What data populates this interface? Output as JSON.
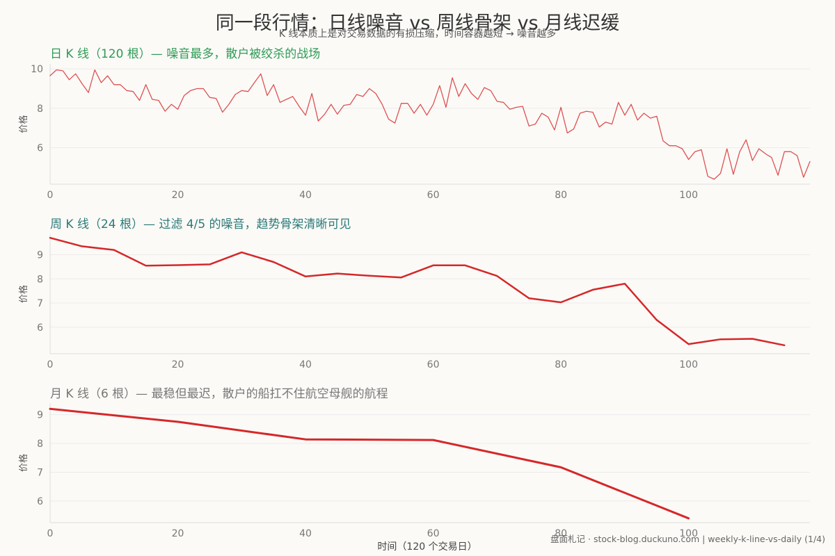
{
  "title": "同一段行情：日线噪音 vs 周线骨架 vs 月线迟缓",
  "subtitle": "K 线本质上是对交易数据的有损压缩，时间容器越短 → 噪音越多",
  "xlabel": "时间（120 个交易日）",
  "footer": "盘面札记 · stock-blog.duckuno.com | weekly-k-line-vs-daily (1/4)",
  "colors": {
    "line": "#d62728",
    "daily_title": "#2e9b55",
    "weekly_title": "#2b7a78",
    "monthly_title": "#777777"
  },
  "chart_data": [
    {
      "type": "line",
      "title": "日 K 线（120 根）— 噪音最多，散户被绞杀的战场",
      "ylabel": "价格",
      "xlim": [
        0,
        119
      ],
      "ylim": [
        4.15,
        10.25
      ],
      "xticks": [
        0,
        20,
        40,
        60,
        80,
        100
      ],
      "yticks": [
        6,
        8,
        10
      ],
      "grid": true,
      "series": [
        {
          "values": [
            9.65,
            9.95,
            9.9,
            9.45,
            9.75,
            9.25,
            8.8,
            9.95,
            9.3,
            9.65,
            9.2,
            9.2,
            8.9,
            8.85,
            8.4,
            9.2,
            8.45,
            8.4,
            7.85,
            8.2,
            7.95,
            8.65,
            8.9,
            9.0,
            9.0,
            8.55,
            8.5,
            7.8,
            8.2,
            8.7,
            8.9,
            8.85,
            9.3,
            9.75,
            8.65,
            9.2,
            8.3,
            8.45,
            8.6,
            8.1,
            7.65,
            8.75,
            7.35,
            7.7,
            8.2,
            7.7,
            8.15,
            8.2,
            8.7,
            8.6,
            9.0,
            8.75,
            8.2,
            7.45,
            7.25,
            8.25,
            8.25,
            7.75,
            8.2,
            7.65,
            8.2,
            9.15,
            8.05,
            9.55,
            8.6,
            9.25,
            8.75,
            8.45,
            9.05,
            8.9,
            8.35,
            8.3,
            7.95,
            8.05,
            8.1,
            7.1,
            7.2,
            7.75,
            7.55,
            6.9,
            8.05,
            6.75,
            6.95,
            7.75,
            7.85,
            7.8,
            7.05,
            7.3,
            7.2,
            8.3,
            7.65,
            8.2,
            7.4,
            7.75,
            7.5,
            7.6,
            6.35,
            6.1,
            6.1,
            5.95,
            5.4,
            5.8,
            5.9,
            4.55,
            4.4,
            4.7,
            5.95,
            4.65,
            5.8,
            6.4,
            5.35,
            5.95,
            5.7,
            5.5,
            4.6,
            5.8,
            5.8,
            5.6,
            4.5,
            5.3
          ]
        }
      ]
    },
    {
      "type": "line",
      "title": "周 K 线（24 根）— 过滤 4/5 的噪音，趋势骨架清晰可见",
      "ylabel": "价格",
      "xlim": [
        0,
        119
      ],
      "ylim": [
        4.9,
        9.85
      ],
      "xticks": [
        0,
        20,
        40,
        60,
        80,
        100
      ],
      "yticks": [
        6,
        7,
        8,
        9
      ],
      "grid": true,
      "series": [
        {
          "x": [
            0,
            5,
            10,
            15,
            20,
            25,
            30,
            35,
            40,
            45,
            50,
            55,
            60,
            65,
            70,
            75,
            80,
            85,
            90,
            95,
            100,
            105,
            110,
            115
          ],
          "values": [
            9.7,
            9.35,
            9.2,
            8.55,
            8.57,
            8.6,
            9.1,
            8.7,
            8.1,
            8.22,
            8.13,
            8.06,
            8.56,
            8.56,
            8.12,
            7.2,
            7.03,
            7.55,
            7.8,
            6.3,
            5.3,
            5.5,
            5.52,
            5.25
          ]
        }
      ]
    },
    {
      "type": "line",
      "title": "月 K 线（6 根）— 最稳但最迟，散户的船扛不住航空母舰的航程",
      "ylabel": "价格",
      "xlim": [
        0,
        119
      ],
      "ylim": [
        5.25,
        9.4
      ],
      "xticks": [
        0,
        20,
        40,
        60,
        80,
        100
      ],
      "yticks": [
        6,
        7,
        8,
        9
      ],
      "grid": true,
      "series": [
        {
          "x": [
            0,
            20,
            40,
            60,
            80,
            100
          ],
          "values": [
            9.2,
            8.75,
            8.14,
            8.12,
            7.17,
            5.4
          ]
        }
      ]
    }
  ]
}
